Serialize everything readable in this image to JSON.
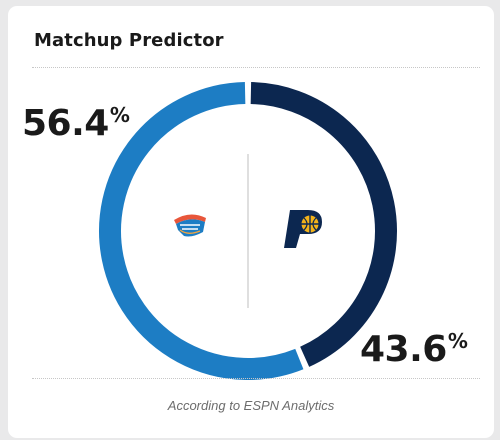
{
  "widget": {
    "title": "Matchup Predictor",
    "footnote": "According to ESPN Analytics"
  },
  "prediction": {
    "home_pct": 56.4,
    "away_pct": 43.6,
    "home_pct_label": "56.4",
    "away_pct_label": "43.6",
    "percent_sign": "%"
  },
  "teams": {
    "home": {
      "icon": "thunder-logo-icon",
      "color": "#1d7dc4"
    },
    "away": {
      "icon": "pacers-logo-icon",
      "color": "#0c2750"
    }
  }
}
